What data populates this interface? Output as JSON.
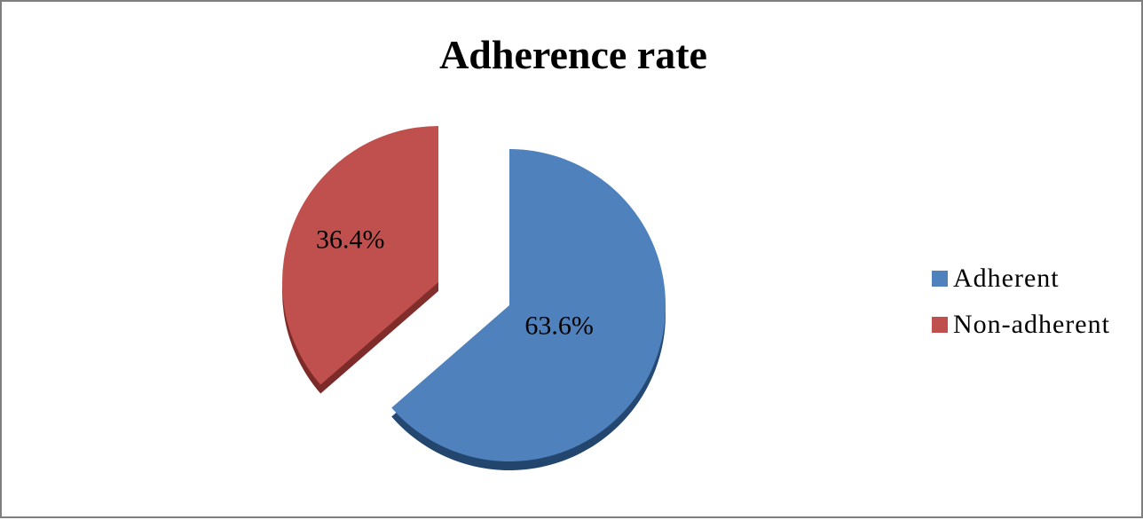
{
  "chart_data": {
    "type": "pie",
    "title": "Adherence rate",
    "slices": [
      {
        "name": "Adherent",
        "value": 63.6,
        "label": "63.6%",
        "color": "#4f81bd"
      },
      {
        "name": "Non-adherent",
        "value": 36.4,
        "label": "36.4%",
        "color": "#c0504d"
      }
    ],
    "exploded": true,
    "legend_position": "right"
  }
}
